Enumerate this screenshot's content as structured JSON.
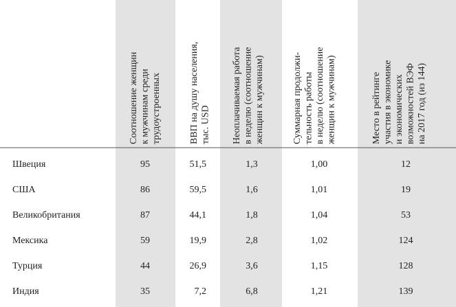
{
  "table": {
    "headers": [
      null,
      [
        "Соотношение женщин",
        "к мужчинам среди",
        "трудоустроенных"
      ],
      [
        "ВВП на душу населения,",
        "тыс. USD"
      ],
      [
        "Неоплачиваемая работа",
        "в неделю (соотношение",
        "женщин к мужчинам)"
      ],
      [
        "Суммарная продолжи-",
        "тельность работы",
        "в неделю (соотношение",
        "женщин к мужчинам)"
      ],
      [
        "Место в рейтинге",
        "участия в экономике",
        "и экономических",
        "возможностей ВЭФ",
        "на 2017 год (из 144)"
      ]
    ],
    "rows": [
      [
        "Швеция",
        "95",
        "51,5",
        "1,3",
        "1,00",
        "12"
      ],
      [
        "США",
        "86",
        "59,5",
        "1,6",
        "1,01",
        "19"
      ],
      [
        "Великобритания",
        "87",
        "44,1",
        "1,8",
        "1,04",
        "53"
      ],
      [
        "Мексика",
        "59",
        "19,9",
        "2,8",
        "1,02",
        "124"
      ],
      [
        "Турция",
        "44",
        "26,9",
        "3,6",
        "1,15",
        "128"
      ],
      [
        "Индия",
        "35",
        "7,2",
        "6,8",
        "1,21",
        "139"
      ]
    ]
  }
}
